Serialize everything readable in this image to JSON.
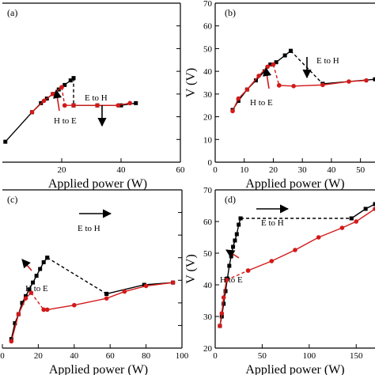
{
  "chart_data": [
    {
      "panel": "(a)",
      "type": "line",
      "xlabel": "Applied power (W)",
      "ylabel": "",
      "xlim": [
        0,
        60
      ],
      "ylim": [
        0,
        70
      ],
      "xticks": [
        "20",
        "40",
        "60"
      ],
      "yticks": [],
      "annotations": [
        {
          "text": "E to H",
          "x": 26,
          "y": 33,
          "arrow": "down"
        },
        {
          "text": "H to E",
          "x": 18,
          "y": 19,
          "arrow": "up"
        }
      ],
      "series": [
        {
          "color": "#000000",
          "marker": "square",
          "style": "solid",
          "x": [
            1,
            10,
            13,
            15,
            17,
            19,
            21,
            23,
            24
          ],
          "y": [
            9,
            22,
            26,
            28,
            30,
            32,
            34,
            36,
            37
          ]
        },
        {
          "color": "#000000",
          "marker": "square",
          "style": "dashed",
          "x": [
            24,
            24
          ],
          "y": [
            37,
            25
          ]
        },
        {
          "color": "#000000",
          "marker": "square",
          "style": "solid",
          "x": [
            24,
            32,
            40,
            45
          ],
          "y": [
            25,
            25,
            25,
            26
          ]
        },
        {
          "color": "#d21a1a",
          "marker": "circle",
          "style": "solid",
          "x": [
            10,
            14,
            17,
            20
          ],
          "y": [
            22,
            27,
            30,
            33
          ]
        },
        {
          "color": "#d21a1a",
          "marker": "circle",
          "style": "dashed",
          "x": [
            20,
            21
          ],
          "y": [
            33,
            25
          ]
        },
        {
          "color": "#d21a1a",
          "marker": "circle",
          "style": "solid",
          "x": [
            21,
            24,
            32,
            39,
            43
          ],
          "y": [
            25,
            25,
            25,
            25,
            26
          ]
        }
      ]
    },
    {
      "panel": "(b)",
      "type": "line",
      "xlabel": "Applied power (W)",
      "ylabel": "V (V)",
      "xlim": [
        0,
        55
      ],
      "ylim": [
        0,
        70
      ],
      "xticks": [
        "0",
        "10",
        "20",
        "30",
        "40",
        "50"
      ],
      "yticks": [
        "0",
        "10",
        "20",
        "30",
        "40",
        "50",
        "60",
        "70"
      ],
      "annotations": [
        {
          "text": "E to H",
          "x": 36,
          "y": 46,
          "arrow": "down"
        },
        {
          "text": "H to E",
          "x": 14,
          "y": 31,
          "arrow": "up"
        }
      ],
      "series": [
        {
          "color": "#000000",
          "marker": "square",
          "style": "solid",
          "x": [
            6,
            8,
            11,
            14,
            17,
            19,
            21,
            24,
            26
          ],
          "y": [
            23,
            27,
            32,
            36,
            40,
            43,
            44,
            47,
            49
          ]
        },
        {
          "color": "#000000",
          "marker": "square",
          "style": "dashed",
          "x": [
            26,
            37
          ],
          "y": [
            49,
            34.5
          ]
        },
        {
          "color": "#000000",
          "marker": "square",
          "style": "solid",
          "x": [
            37,
            55
          ],
          "y": [
            34.5,
            36.5
          ]
        },
        {
          "color": "#d21a1a",
          "marker": "circle",
          "style": "solid",
          "x": [
            6,
            8,
            11,
            15,
            18,
            20
          ],
          "y": [
            22.5,
            28,
            32,
            38,
            42,
            43
          ]
        },
        {
          "color": "#d21a1a",
          "marker": "circle",
          "style": "dashed",
          "x": [
            20,
            22
          ],
          "y": [
            43,
            33.8
          ]
        },
        {
          "color": "#d21a1a",
          "marker": "circle",
          "style": "solid",
          "x": [
            22,
            27,
            37,
            46,
            52
          ],
          "y": [
            33.8,
            33.5,
            34,
            35.5,
            36
          ]
        }
      ]
    },
    {
      "panel": "(c)",
      "type": "line",
      "xlabel": "Applied power (W)",
      "ylabel": "",
      "xlim": [
        0,
        100
      ],
      "ylim": [
        0,
        70
      ],
      "xticks": [
        "0",
        "20",
        "40",
        "60",
        "80",
        "100"
      ],
      "yticks": [],
      "annotations": [
        {
          "text": "E to H",
          "x": 49,
          "y": 39,
          "arrow": "right"
        },
        {
          "text": "H to E",
          "x": 12,
          "y": 17,
          "arrow": "up-right"
        }
      ],
      "series": [
        {
          "color": "#000000",
          "marker": "square",
          "style": "solid",
          "x": [
            5,
            7,
            9,
            11,
            13,
            15,
            17,
            19,
            21,
            23,
            25
          ],
          "y": [
            4,
            11,
            15,
            20,
            23,
            26,
            29,
            32,
            35,
            38,
            40
          ]
        },
        {
          "color": "#000000",
          "marker": "square",
          "style": "dashed",
          "x": [
            25,
            58
          ],
          "y": [
            40,
            24
          ]
        },
        {
          "color": "#000000",
          "marker": "square",
          "style": "solid",
          "x": [
            58,
            79,
            95
          ],
          "y": [
            24,
            28,
            29
          ]
        },
        {
          "color": "#d21a1a",
          "marker": "circle",
          "style": "solid",
          "x": [
            5,
            9,
            13,
            16
          ],
          "y": [
            3,
            15,
            22,
            24.5
          ]
        },
        {
          "color": "#d21a1a",
          "marker": "circle",
          "style": "dashed",
          "x": [
            16,
            23
          ],
          "y": [
            24.5,
            17
          ]
        },
        {
          "color": "#d21a1a",
          "marker": "circle",
          "style": "solid",
          "x": [
            23,
            25,
            40,
            58,
            68,
            80,
            95
          ],
          "y": [
            17,
            17,
            19,
            22,
            25,
            27.5,
            29
          ]
        }
      ]
    },
    {
      "panel": "(d)",
      "type": "line",
      "xlabel": "Applied power (W)",
      "ylabel": "V (V)",
      "xlim": [
        0,
        170
      ],
      "ylim": [
        20,
        70
      ],
      "xticks": [
        "0",
        "50",
        "100",
        "150"
      ],
      "yticks": [
        "20",
        "30",
        "40",
        "50",
        "60",
        "70"
      ],
      "annotations": [
        {
          "text": "E to H",
          "x": 55,
          "y": 57.5,
          "arrow": "right"
        },
        {
          "text": "H to E",
          "x": 18,
          "y": 35.5,
          "arrow": "up-left"
        }
      ],
      "series": [
        {
          "color": "#000000",
          "marker": "square",
          "style": "solid",
          "x": [
            5,
            7,
            9,
            11,
            13,
            15,
            17,
            19,
            21,
            23,
            25,
            27
          ],
          "y": [
            27,
            30,
            34,
            38,
            42,
            46,
            49,
            52,
            54,
            56,
            59,
            61
          ]
        },
        {
          "color": "#000000",
          "marker": "square",
          "style": "dashed",
          "x": [
            27,
            145
          ],
          "y": [
            61,
            61
          ]
        },
        {
          "color": "#000000",
          "marker": "square",
          "style": "solid",
          "x": [
            145,
            160,
            170
          ],
          "y": [
            61,
            64,
            65.5
          ]
        },
        {
          "color": "#d21a1a",
          "marker": "circle",
          "style": "solid",
          "x": [
            5,
            7,
            9,
            12
          ],
          "y": [
            27,
            31,
            36,
            41.5
          ]
        },
        {
          "color": "#d21a1a",
          "marker": "circle",
          "style": "dashed",
          "x": [
            12,
            35
          ],
          "y": [
            41.5,
            44.5
          ]
        },
        {
          "color": "#d21a1a",
          "marker": "circle",
          "style": "solid",
          "x": [
            35,
            60,
            85,
            110,
            135,
            150,
            170
          ],
          "y": [
            44.5,
            47.5,
            51,
            55,
            58,
            60,
            64
          ]
        }
      ]
    }
  ]
}
